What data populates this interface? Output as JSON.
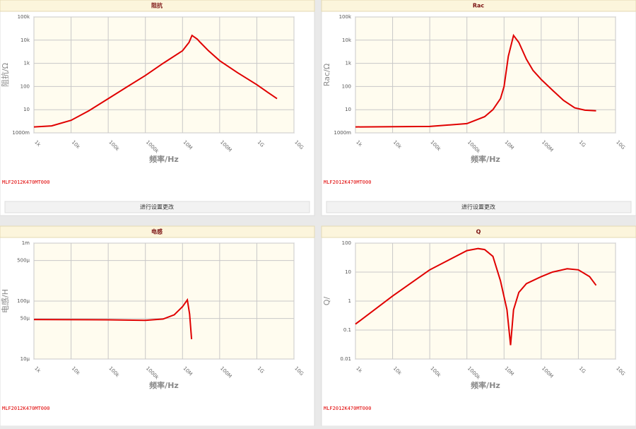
{
  "chart_data": [
    {
      "type": "line",
      "title": "阻抗",
      "xlabel": "频率/Hz",
      "ylabel": "阻抗/Ω",
      "footnote": "MLF2012K470MT000",
      "button": "进行设置更改",
      "log_x": true,
      "log_y": true,
      "grid": true,
      "color": "#e00000",
      "xlim": [
        1000,
        10000000000
      ],
      "ylim": [
        1,
        100000
      ],
      "xticks": [
        {
          "value": 1000,
          "label": "1k"
        },
        {
          "value": 10000,
          "label": "10k"
        },
        {
          "value": 100000,
          "label": "100k"
        },
        {
          "value": 1000000,
          "label": "1000k"
        },
        {
          "value": 10000000,
          "label": "10M"
        },
        {
          "value": 100000000,
          "label": "100M"
        },
        {
          "value": 1000000000,
          "label": "1G"
        },
        {
          "value": 10000000000,
          "label": "10G"
        }
      ],
      "yticks": [
        {
          "value": 1,
          "label": "1000m"
        },
        10,
        100,
        {
          "value": 1000,
          "label": "1k"
        },
        {
          "value": 10000,
          "label": "10k"
        },
        {
          "value": 100000,
          "label": "100k"
        }
      ],
      "x": [
        1000,
        3000,
        10000,
        30000,
        100000,
        300000,
        1000000,
        3000000,
        10000000,
        15000000,
        18000000,
        25000000,
        30000000,
        50000000,
        100000000,
        300000000,
        1000000000,
        2000000000,
        3500000000
      ],
      "values": [
        1.8,
        2.0,
        3.5,
        9,
        30,
        90,
        300,
        1000,
        3500,
        8000,
        16000,
        11000,
        8000,
        3500,
        1300,
        400,
        120,
        55,
        30
      ]
    },
    {
      "type": "line",
      "title": "Rac",
      "xlabel": "频率/Hz",
      "ylabel": "Rac/Ω",
      "footnote": "MLF2012K470MT000",
      "button": "进行设置更改",
      "log_x": true,
      "log_y": true,
      "grid": true,
      "color": "#e00000",
      "xlim": [
        1000,
        10000000000
      ],
      "ylim": [
        1,
        100000
      ],
      "xticks": [
        {
          "value": 1000,
          "label": "1k"
        },
        {
          "value": 10000,
          "label": "10k"
        },
        {
          "value": 100000,
          "label": "100k"
        },
        {
          "value": 1000000,
          "label": "1000k"
        },
        {
          "value": 10000000,
          "label": "10M"
        },
        {
          "value": 100000000,
          "label": "100M"
        },
        {
          "value": 1000000000,
          "label": "1G"
        },
        {
          "value": 10000000000,
          "label": "10G"
        }
      ],
      "yticks": [
        {
          "value": 1,
          "label": "1000m"
        },
        10,
        100,
        {
          "value": 1000,
          "label": "1k"
        },
        {
          "value": 10000,
          "label": "10k"
        },
        {
          "value": 100000,
          "label": "100k"
        }
      ],
      "x": [
        1000,
        100000,
        1000000,
        3000000,
        5000000,
        8000000,
        10000000,
        13000000,
        18000000,
        25000000,
        40000000,
        60000000,
        100000000,
        200000000,
        400000000,
        800000000,
        1500000000,
        3000000000
      ],
      "values": [
        1.8,
        1.9,
        2.5,
        5,
        10,
        30,
        100,
        2000,
        16000,
        8000,
        1500,
        500,
        200,
        70,
        25,
        12,
        9.5,
        9
      ]
    },
    {
      "type": "line",
      "title": "电感",
      "xlabel": "频率/Hz",
      "ylabel": "电感/H",
      "footnote": "MLF2012K470MT000",
      "log_x": true,
      "log_y": true,
      "grid": true,
      "color": "#e00000",
      "xlim": [
        1000,
        10000000000
      ],
      "ylim": [
        1e-05,
        0.001
      ],
      "xticks": [
        {
          "value": 1000,
          "label": "1k"
        },
        {
          "value": 10000,
          "label": "10k"
        },
        {
          "value": 100000,
          "label": "100k"
        },
        {
          "value": 1000000,
          "label": "1000k"
        },
        {
          "value": 10000000,
          "label": "10M"
        },
        {
          "value": 100000000,
          "label": "100M"
        },
        {
          "value": 1000000000,
          "label": "1G"
        },
        {
          "value": 10000000000,
          "label": "10G"
        }
      ],
      "yticks": [
        {
          "value": 1e-05,
          "label": "10μ"
        },
        {
          "value": 5e-05,
          "label": "50μ"
        },
        {
          "value": 0.0001,
          "label": "100μ"
        },
        {
          "value": 0.0005,
          "label": "500μ"
        },
        {
          "value": 0.001,
          "label": "1m"
        }
      ],
      "x": [
        1000,
        100000,
        1000000,
        3000000,
        6000000,
        10000000,
        13500000,
        15500000,
        17500000
      ],
      "values": [
        4.8e-05,
        4.75e-05,
        4.65e-05,
        4.9e-05,
        5.8e-05,
        8e-05,
        0.000105,
        6e-05,
        2.2e-05
      ]
    },
    {
      "type": "line",
      "title": "Q",
      "xlabel": "频率/Hz",
      "ylabel": "Q/",
      "footnote": "MLF2012K470MT000",
      "log_x": true,
      "log_y": true,
      "grid": true,
      "color": "#e00000",
      "xlim": [
        1000,
        10000000000
      ],
      "ylim": [
        0.01,
        100
      ],
      "xticks": [
        {
          "value": 1000,
          "label": "1k"
        },
        {
          "value": 10000,
          "label": "10k"
        },
        {
          "value": 100000,
          "label": "100k"
        },
        {
          "value": 1000000,
          "label": "1000k"
        },
        {
          "value": 10000000,
          "label": "10M"
        },
        {
          "value": 100000000,
          "label": "100M"
        },
        {
          "value": 1000000000,
          "label": "1G"
        },
        {
          "value": 10000000000,
          "label": "10G"
        }
      ],
      "yticks": [
        0.01,
        0.1,
        1,
        10,
        100
      ],
      "x": [
        1000,
        10000,
        100000,
        1000000,
        2000000,
        3000000,
        5000000,
        8000000,
        12000000,
        15000000,
        18000000,
        25000000,
        40000000,
        100000000,
        200000000,
        500000000,
        1000000000,
        2000000000,
        3000000000
      ],
      "values": [
        0.16,
        1.5,
        12,
        55,
        65,
        60,
        35,
        5,
        0.5,
        0.03,
        0.5,
        2,
        4,
        7,
        10,
        13,
        12,
        7,
        3.5
      ]
    }
  ]
}
